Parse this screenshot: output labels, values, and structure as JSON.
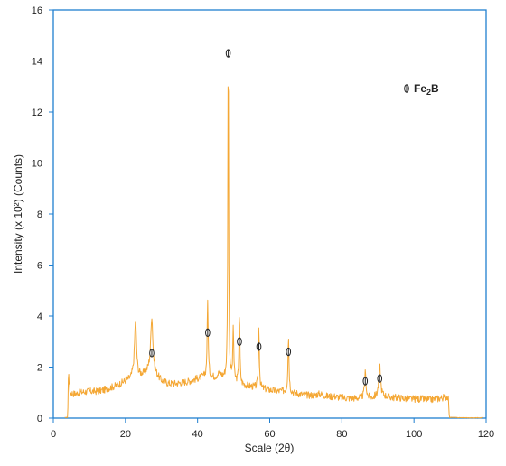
{
  "chart_data": {
    "type": "line",
    "xlabel": "Scale (2θ)",
    "ylabel": "Intensity (x 10²) (Counts)",
    "xlim": [
      0,
      120
    ],
    "ylim": [
      0,
      16
    ],
    "x_ticks": [
      0,
      20,
      40,
      60,
      80,
      100,
      120
    ],
    "y_ticks": [
      0,
      2,
      4,
      6,
      8,
      10,
      12,
      14,
      16
    ],
    "grid": false,
    "legend_position": "top-right",
    "series_color": "#f4a734",
    "axis_color": "#1f7fd0",
    "baseline": [
      [
        3.2,
        0.02
      ],
      [
        4.0,
        0.03
      ],
      [
        4.2,
        1.9
      ],
      [
        4.6,
        1.0
      ],
      [
        6,
        0.95
      ],
      [
        8,
        1.02
      ],
      [
        10,
        1.05
      ],
      [
        12,
        1.05
      ],
      [
        14,
        1.1
      ],
      [
        16,
        1.2
      ],
      [
        18,
        1.3
      ],
      [
        20,
        1.45
      ],
      [
        21.5,
        1.55
      ],
      [
        22.5,
        1.8
      ],
      [
        23.5,
        1.65
      ],
      [
        25,
        1.7
      ],
      [
        26.5,
        1.85
      ],
      [
        28,
        1.75
      ],
      [
        30,
        1.45
      ],
      [
        32,
        1.35
      ],
      [
        34,
        1.35
      ],
      [
        36,
        1.4
      ],
      [
        38,
        1.45
      ],
      [
        40,
        1.55
      ],
      [
        41.5,
        1.6
      ],
      [
        45,
        1.6
      ],
      [
        46,
        1.75
      ],
      [
        47,
        1.6
      ],
      [
        48,
        1.55
      ],
      [
        50,
        1.45
      ],
      [
        52,
        1.3
      ],
      [
        54,
        1.25
      ],
      [
        56,
        1.2
      ],
      [
        58,
        1.15
      ],
      [
        60,
        1.1
      ],
      [
        62,
        1.05
      ],
      [
        64,
        1.05
      ],
      [
        66,
        1.0
      ],
      [
        68,
        0.95
      ],
      [
        70,
        0.9
      ],
      [
        72,
        0.9
      ],
      [
        74,
        0.95
      ],
      [
        76,
        0.85
      ],
      [
        78,
        0.85
      ],
      [
        80,
        0.8
      ],
      [
        82,
        0.78
      ],
      [
        84,
        0.78
      ],
      [
        86,
        0.78
      ],
      [
        88,
        0.78
      ],
      [
        90,
        0.85
      ],
      [
        92,
        0.85
      ],
      [
        94,
        0.8
      ],
      [
        96,
        0.8
      ],
      [
        98,
        0.75
      ],
      [
        100,
        0.75
      ],
      [
        102,
        0.75
      ],
      [
        104,
        0.72
      ],
      [
        106,
        0.75
      ],
      [
        108,
        0.8
      ],
      [
        109.5,
        0.85
      ],
      [
        109.8,
        0.03
      ],
      [
        112,
        0.02
      ],
      [
        116,
        0.01
      ],
      [
        119,
        0.02
      ]
    ],
    "peaks": [
      {
        "x": 22.8,
        "height": 2.1,
        "width": 0.6
      },
      {
        "x": 27.3,
        "height": 2.2,
        "width": 0.7
      },
      {
        "x": 42.8,
        "height": 3.0,
        "width": 0.35
      },
      {
        "x": 48.5,
        "height": 14.0,
        "width": 0.25
      },
      {
        "x": 49.9,
        "height": 2.1,
        "width": 0.3
      },
      {
        "x": 51.6,
        "height": 2.8,
        "width": 0.3
      },
      {
        "x": 57.0,
        "height": 2.5,
        "width": 0.3
      },
      {
        "x": 65.2,
        "height": 2.2,
        "width": 0.35
      },
      {
        "x": 86.5,
        "height": 1.0,
        "width": 0.5
      },
      {
        "x": 90.5,
        "height": 1.2,
        "width": 0.6
      }
    ],
    "markers": [
      {
        "x": 27.3,
        "y": 2.55
      },
      {
        "x": 42.8,
        "y": 3.35
      },
      {
        "x": 48.5,
        "y": 14.3
      },
      {
        "x": 51.6,
        "y": 3.0
      },
      {
        "x": 57.0,
        "y": 2.8
      },
      {
        "x": 65.2,
        "y": 2.6
      },
      {
        "x": 86.5,
        "y": 1.45
      },
      {
        "x": 90.5,
        "y": 1.55
      }
    ],
    "legend": {
      "label_main": "Fe",
      "label_sub": "2",
      "label_tail": "B"
    }
  }
}
